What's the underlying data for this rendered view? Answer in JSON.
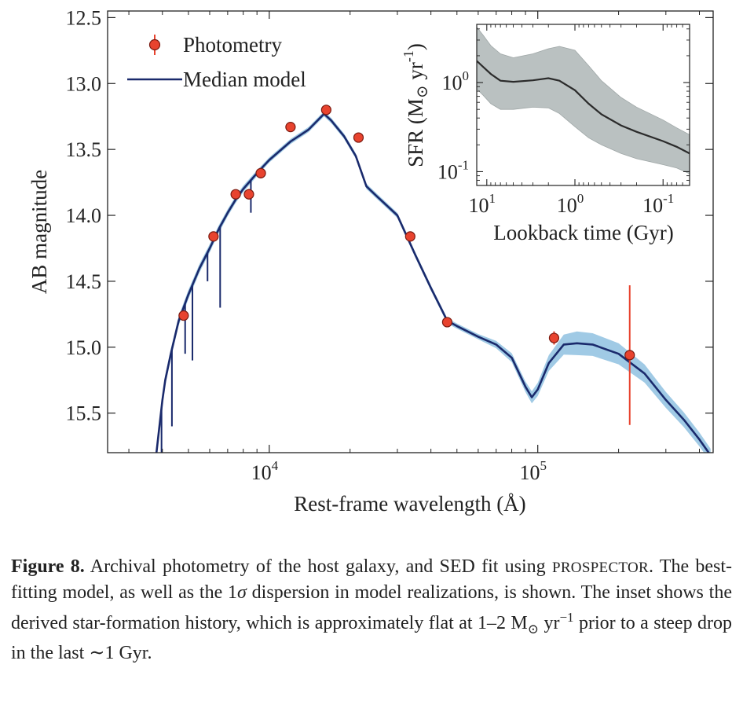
{
  "chart_data": [
    {
      "type": "line",
      "role": "main",
      "xlabel": "Rest-frame wavelength (Å)",
      "ylabel": "AB magnitude",
      "xscale": "log",
      "xlim": [
        2500,
        450000
      ],
      "ylim": [
        15.8,
        12.45
      ],
      "y_inverted": true,
      "yticks": [
        "12.5",
        "13.0",
        "13.5",
        "14.0",
        "14.5",
        "15.0",
        "15.5"
      ],
      "xticks": [
        {
          "value": 10000,
          "base": "10",
          "exp": "4"
        },
        {
          "value": 100000,
          "base": "10",
          "exp": "5"
        }
      ],
      "legend_position": "top-left",
      "legend": [
        "Photometry",
        "Median model"
      ],
      "colors": {
        "photometry": "#e8432e",
        "model": "#1a2a6c",
        "band": "#8fc1e0",
        "error": "#e8432e"
      },
      "photometry": [
        {
          "x": 4800,
          "y": 14.76,
          "err": 0.03
        },
        {
          "x": 6200,
          "y": 14.16,
          "err": 0.03
        },
        {
          "x": 7500,
          "y": 13.84,
          "err": 0.03
        },
        {
          "x": 8400,
          "y": 13.84,
          "err": 0.04
        },
        {
          "x": 9300,
          "y": 13.68,
          "err": 0.04
        },
        {
          "x": 12000,
          "y": 13.33,
          "err": 0.03
        },
        {
          "x": 16300,
          "y": 13.2,
          "err": 0.03
        },
        {
          "x": 21500,
          "y": 13.41,
          "err": 0.03
        },
        {
          "x": 33500,
          "y": 14.16,
          "err": 0.03
        },
        {
          "x": 46000,
          "y": 14.81,
          "err": 0.03
        },
        {
          "x": 115000,
          "y": 14.93,
          "err": 0.05
        },
        {
          "x": 220000,
          "y": 15.06,
          "err": 0.53
        }
      ],
      "model": {
        "x": [
          3800,
          3900,
          4000,
          4100,
          4300,
          4600,
          5000,
          5500,
          6000,
          6500,
          7000,
          7500,
          8000,
          9000,
          10000,
          12000,
          14000,
          16000,
          17000,
          19000,
          21000,
          23000,
          25000,
          30000,
          35000,
          40000,
          44000,
          46000,
          50000,
          60000,
          70000,
          80000,
          90000,
          95000,
          100000,
          110000,
          125000,
          140000,
          160000,
          200000,
          250000,
          300000,
          350000,
          400000,
          440000
        ],
        "y": [
          15.8,
          15.6,
          15.4,
          15.25,
          15.05,
          14.8,
          14.6,
          14.4,
          14.25,
          14.1,
          13.98,
          13.88,
          13.8,
          13.68,
          13.58,
          13.44,
          13.35,
          13.23,
          13.28,
          13.4,
          13.55,
          13.78,
          13.85,
          14.0,
          14.3,
          14.55,
          14.72,
          14.8,
          14.84,
          14.92,
          14.98,
          15.08,
          15.3,
          15.38,
          15.32,
          15.12,
          14.98,
          14.97,
          14.98,
          15.05,
          15.2,
          15.4,
          15.55,
          15.7,
          15.82
        ]
      },
      "band_halfwidth": {
        "x": [
          3800,
          10000,
          60000,
          90000,
          110000,
          140000,
          200000,
          300000,
          440000
        ],
        "dy": [
          0.04,
          0.02,
          0.02,
          0.04,
          0.06,
          0.09,
          0.08,
          0.06,
          0.05
        ]
      },
      "absorption_lines": [
        {
          "x": 3970,
          "y": 15.8
        },
        {
          "x": 4340,
          "y": 15.6
        },
        {
          "x": 4861,
          "y": 15.05
        },
        {
          "x": 5175,
          "y": 15.1
        },
        {
          "x": 5890,
          "y": 14.5
        },
        {
          "x": 6563,
          "y": 14.7
        },
        {
          "x": 8542,
          "y": 13.98
        }
      ]
    },
    {
      "type": "area",
      "role": "inset",
      "xlabel": "Lookback time (Gyr)",
      "ylabel": "SFR (M⊙ yr⁻¹)",
      "xscale": "log",
      "yscale": "log",
      "x_inverted": true,
      "xlim": [
        13,
        0.05
      ],
      "ylim": [
        0.07,
        4.5
      ],
      "xticks": [
        {
          "value": 10,
          "base": "10",
          "exp": "1"
        },
        {
          "value": 1,
          "base": "10",
          "exp": "0"
        },
        {
          "value": 0.1,
          "base": "10",
          "exp": "-1"
        }
      ],
      "yticks": [
        {
          "value": 1,
          "base": "10",
          "exp": "0"
        },
        {
          "value": 0.1,
          "base": "10",
          "exp": "-1"
        }
      ],
      "colors": {
        "median": "#333333",
        "band": "#b3baba"
      },
      "x": [
        13,
        11,
        9,
        7,
        5,
        3,
        2,
        1.5,
        1.0,
        0.7,
        0.5,
        0.3,
        0.2,
        0.1,
        0.07,
        0.05
      ],
      "median": [
        1.75,
        1.5,
        1.25,
        1.05,
        1.02,
        1.06,
        1.12,
        1.05,
        0.82,
        0.58,
        0.44,
        0.33,
        0.28,
        0.22,
        0.19,
        0.16
      ],
      "lower": [
        0.85,
        0.72,
        0.58,
        0.5,
        0.5,
        0.53,
        0.52,
        0.45,
        0.32,
        0.24,
        0.2,
        0.16,
        0.14,
        0.12,
        0.11,
        0.095
      ],
      "upper": [
        4.2,
        3.4,
        2.6,
        2.1,
        1.9,
        2.1,
        2.4,
        2.55,
        2.3,
        1.55,
        1.05,
        0.68,
        0.53,
        0.38,
        0.31,
        0.26
      ]
    }
  ],
  "caption": {
    "label": "Figure 8.",
    "part1": "Archival photometry of the host galaxy, and SED fit using",
    "smallcaps": "PROSPECTOR",
    "part2": ". The best-fitting model, as well as the 1",
    "sigma": "σ",
    "part3": " dispersion in model realizations, is shown. The inset shows the derived star-formation history, which is approximately flat at 1–2",
    "unit_m": "M",
    "sun": "⊙",
    "unit_yr": "yr",
    "unit_exp": "−1",
    "part4": " prior to a steep drop in the last",
    "part5": "∼1 Gyr."
  }
}
